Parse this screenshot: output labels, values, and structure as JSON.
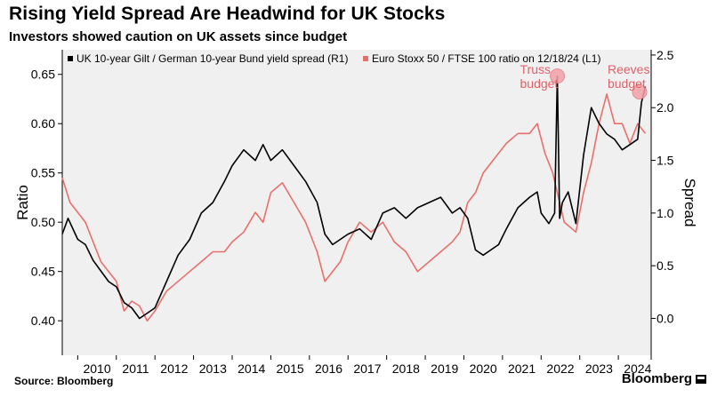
{
  "header": {
    "title": "Rising Yield Spread Are Headwind for UK Stocks",
    "subtitle": "Investors showed caution on UK assets since budget"
  },
  "footer": {
    "source": "Source: Bloomberg",
    "brand": "Bloomberg",
    "brand_icon": "bloomberg-terminal-icon"
  },
  "colors": {
    "spread": "#000000",
    "ratio": "#e8706c",
    "marker": "#f3a2a8",
    "plot_bg": "#f0f0f0"
  },
  "chart_data": {
    "type": "line",
    "xlabel": "",
    "ylabel_left": "Ratio",
    "ylabel_right": "Spread",
    "x_ticks": [
      "2010",
      "2011",
      "2012",
      "2013",
      "2014",
      "2015",
      "2016",
      "2017",
      "2018",
      "2019",
      "2020",
      "2021",
      "2022",
      "2023",
      "2024"
    ],
    "xlim": [
      2009.6,
      2024.85
    ],
    "ylim_left": [
      0.365,
      0.675
    ],
    "ylim_right": [
      -0.35,
      2.55
    ],
    "left_ticks": [
      0.4,
      0.45,
      0.5,
      0.55,
      0.6,
      0.65
    ],
    "left_tick_labels": [
      "0.40",
      "0.45",
      "0.50",
      "0.55",
      "0.60",
      "0.65"
    ],
    "right_ticks": [
      0.0,
      0.5,
      1.0,
      1.5,
      2.0,
      2.5
    ],
    "right_tick_labels": [
      "0.0",
      "0.5",
      "1.0",
      "1.5",
      "2.0",
      "2.5"
    ],
    "grid": false,
    "legend_position": "top",
    "series": [
      {
        "name": "UK 10-year Gilt / German 10-year Bund yield spread (R1)",
        "axis": "right",
        "color": "#000000",
        "x": [
          2009.6,
          2009.75,
          2010.0,
          2010.2,
          2010.4,
          2010.6,
          2010.8,
          2011.0,
          2011.2,
          2011.4,
          2011.6,
          2011.8,
          2012.0,
          2012.3,
          2012.6,
          2012.9,
          2013.2,
          2013.5,
          2013.8,
          2014.0,
          2014.3,
          2014.6,
          2014.8,
          2015.0,
          2015.3,
          2015.6,
          2015.9,
          2016.2,
          2016.4,
          2016.6,
          2016.8,
          2017.0,
          2017.3,
          2017.6,
          2017.9,
          2018.2,
          2018.5,
          2018.8,
          2019.1,
          2019.4,
          2019.7,
          2019.9,
          2020.1,
          2020.3,
          2020.5,
          2020.7,
          2020.9,
          2021.1,
          2021.4,
          2021.7,
          2021.9,
          2022.0,
          2022.2,
          2022.35,
          2022.42,
          2022.48,
          2022.55,
          2022.7,
          2022.9,
          2023.1,
          2023.3,
          2023.5,
          2023.7,
          2023.9,
          2024.1,
          2024.3,
          2024.5,
          2024.6,
          2024.7
        ],
        "values": [
          0.8,
          0.95,
          0.75,
          0.7,
          0.55,
          0.45,
          0.35,
          0.3,
          0.15,
          0.1,
          0.0,
          0.05,
          0.1,
          0.35,
          0.6,
          0.75,
          1.0,
          1.1,
          1.3,
          1.45,
          1.6,
          1.5,
          1.65,
          1.5,
          1.6,
          1.45,
          1.3,
          1.1,
          0.8,
          0.7,
          0.75,
          0.8,
          0.85,
          0.75,
          1.0,
          1.05,
          0.95,
          1.05,
          1.1,
          1.15,
          1.0,
          1.05,
          0.95,
          0.65,
          0.6,
          0.65,
          0.7,
          0.85,
          1.05,
          1.15,
          1.2,
          1.0,
          0.9,
          1.0,
          2.3,
          0.95,
          1.1,
          1.2,
          0.9,
          1.55,
          2.0,
          1.85,
          1.75,
          1.7,
          1.6,
          1.65,
          1.7,
          2.05,
          2.2
        ]
      },
      {
        "name": "Euro Stoxx 50 / FTSE 100 ratio on 12/18/24 (L1)",
        "axis": "left",
        "color": "#e8706c",
        "x": [
          2009.6,
          2009.8,
          2010.0,
          2010.2,
          2010.4,
          2010.6,
          2010.8,
          2011.0,
          2011.2,
          2011.4,
          2011.6,
          2011.8,
          2012.0,
          2012.3,
          2012.6,
          2012.9,
          2013.2,
          2013.5,
          2013.8,
          2014.0,
          2014.3,
          2014.6,
          2014.8,
          2015.0,
          2015.3,
          2015.6,
          2015.9,
          2016.2,
          2016.4,
          2016.6,
          2016.8,
          2017.0,
          2017.3,
          2017.6,
          2017.9,
          2018.2,
          2018.5,
          2018.8,
          2019.1,
          2019.4,
          2019.7,
          2019.9,
          2020.1,
          2020.3,
          2020.5,
          2020.7,
          2020.9,
          2021.1,
          2021.4,
          2021.7,
          2021.9,
          2022.1,
          2022.3,
          2022.6,
          2022.9,
          2023.1,
          2023.3,
          2023.5,
          2023.7,
          2023.9,
          2024.1,
          2024.3,
          2024.5,
          2024.7
        ],
        "values": [
          0.545,
          0.52,
          0.51,
          0.5,
          0.48,
          0.46,
          0.45,
          0.44,
          0.41,
          0.42,
          0.415,
          0.4,
          0.41,
          0.43,
          0.44,
          0.45,
          0.46,
          0.47,
          0.47,
          0.48,
          0.49,
          0.51,
          0.5,
          0.53,
          0.54,
          0.52,
          0.5,
          0.47,
          0.44,
          0.45,
          0.46,
          0.48,
          0.5,
          0.49,
          0.5,
          0.48,
          0.47,
          0.45,
          0.46,
          0.47,
          0.48,
          0.49,
          0.52,
          0.53,
          0.55,
          0.56,
          0.57,
          0.58,
          0.59,
          0.59,
          0.6,
          0.57,
          0.55,
          0.5,
          0.49,
          0.53,
          0.56,
          0.6,
          0.63,
          0.6,
          0.6,
          0.58,
          0.6,
          0.59
        ]
      }
    ],
    "annotations": [
      {
        "text": "Truss budget",
        "x": 2022.42,
        "y": 2.3,
        "axis": "right"
      },
      {
        "text": "Reeves budget",
        "x": 2024.55,
        "y": 2.15,
        "axis": "right"
      }
    ]
  }
}
